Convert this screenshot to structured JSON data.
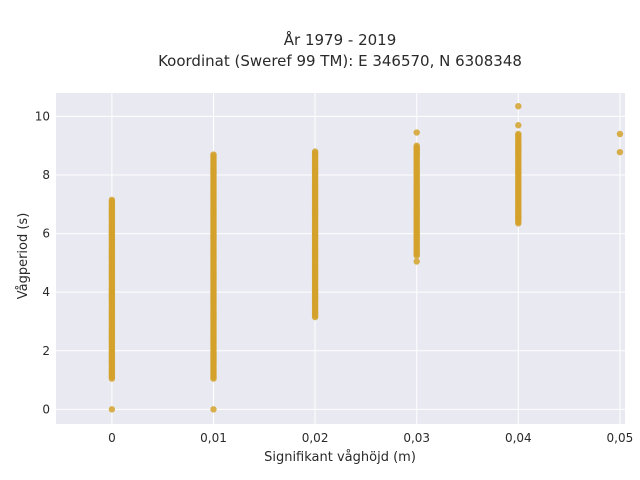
{
  "chart_data": {
    "type": "scatter",
    "title": "År 1979 - 2019",
    "subtitle": "Koordinat (Sweref 99 TM): E 346570, N 6308348",
    "xlabel": "Signifikant våghöjd (m)",
    "ylabel": "Vågperiod (s)",
    "xlim": [
      -0.0055,
      0.0505
    ],
    "ylim": [
      -0.5,
      10.8
    ],
    "x_ticks": [
      0,
      0.01,
      0.02,
      0.03,
      0.04,
      0.05
    ],
    "x_tick_labels": [
      "0",
      "0,01",
      "0,02",
      "0,03",
      "0,04",
      "0,05"
    ],
    "y_ticks": [
      0,
      2,
      4,
      6,
      8,
      10
    ],
    "y_tick_labels": [
      "0",
      "2",
      "4",
      "6",
      "8",
      "10"
    ],
    "grid": true,
    "marker_color": "#D4A22B",
    "plot_background": "#E9E9F1",
    "columns": [
      {
        "x": 0,
        "ymin": 1.05,
        "ymax": 7.15,
        "extra_y": [
          0.0
        ]
      },
      {
        "x": 0.01,
        "ymin": 1.05,
        "ymax": 8.7,
        "extra_y": [
          0.0
        ]
      },
      {
        "x": 0.02,
        "ymin": 3.15,
        "ymax": 8.8,
        "extra_y": []
      },
      {
        "x": 0.03,
        "ymin": 5.25,
        "ymax": 9.0,
        "extra_y": [
          5.05,
          8.75,
          8.9,
          9.45
        ]
      },
      {
        "x": 0.04,
        "ymin": 6.35,
        "ymax": 9.4,
        "extra_y": [
          6.55,
          9.7,
          10.35
        ]
      },
      {
        "x": 0.05,
        "ymin": null,
        "ymax": null,
        "extra_y": [
          8.78,
          9.4
        ]
      }
    ]
  }
}
